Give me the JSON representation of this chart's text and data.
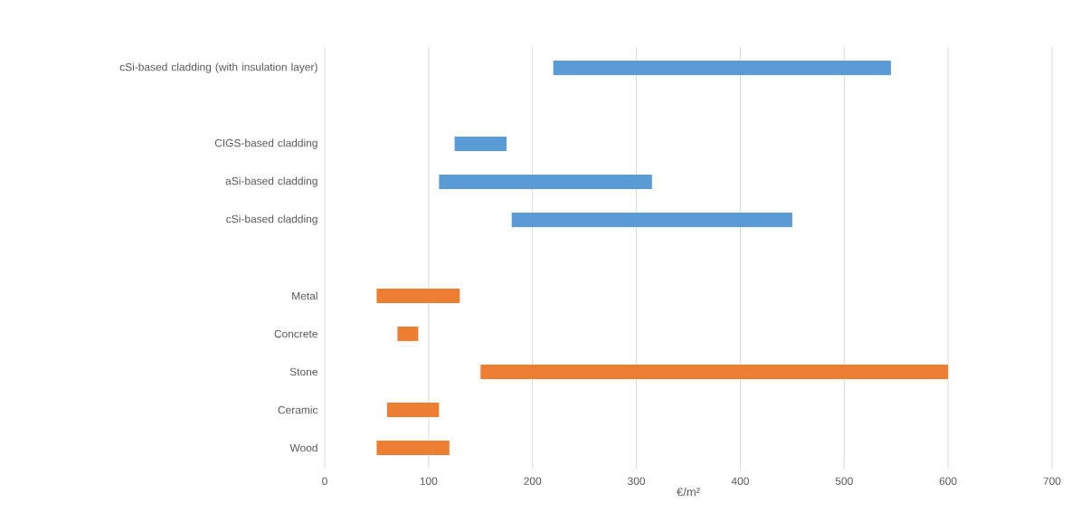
{
  "chart_data": {
    "type": "bar",
    "orientation": "horizontal",
    "xlabel": "€/m²",
    "categories": [
      "cSi-based cladding (with insulation layer)",
      null,
      "CIGS-based cladding",
      "aSi-based cladding",
      "cSi-based cladding",
      null,
      "Metal",
      "Concrete",
      "Stone",
      "Ceramic",
      "Wood"
    ],
    "base": [
      220,
      null,
      125,
      110,
      180,
      null,
      50,
      70,
      150,
      60,
      50
    ],
    "values": [
      325,
      null,
      50,
      205,
      270,
      null,
      80,
      20,
      450,
      50,
      70
    ],
    "colors": [
      "#5b9bd5",
      null,
      "#5b9bd5",
      "#5b9bd5",
      "#5b9bd5",
      null,
      "#ed7d31",
      "#ed7d31",
      "#ed7d31",
      "#ed7d31",
      "#ed7d31"
    ],
    "xlim": [
      0,
      700
    ],
    "xticks": [
      0,
      100,
      200,
      300,
      400,
      500,
      600,
      700
    ],
    "grid": "x"
  }
}
